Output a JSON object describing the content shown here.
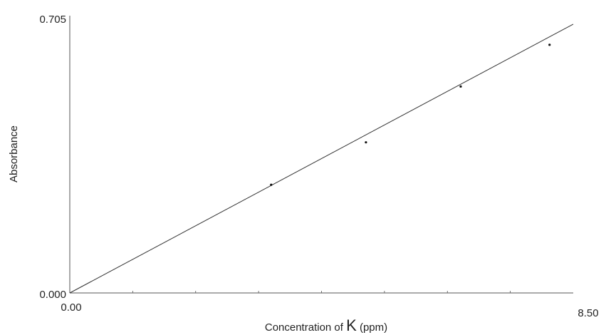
{
  "chart_data": {
    "type": "scatter",
    "title": "",
    "xlabel_parts": [
      "Concentration of ",
      "K",
      " (ppm)"
    ],
    "ylabel": "Absorbance",
    "xlim": [
      0.0,
      8.5
    ],
    "ylim": [
      0.0,
      0.705
    ],
    "x_tick_labels": {
      "min": "0.00",
      "max": "8.50"
    },
    "y_tick_labels": {
      "min": "0.000",
      "max": "0.705"
    },
    "grid": false,
    "legend": "none",
    "points": [
      {
        "x": 3.4,
        "y": 0.275
      },
      {
        "x": 5.0,
        "y": 0.383
      },
      {
        "x": 6.6,
        "y": 0.525
      },
      {
        "x": 8.1,
        "y": 0.631
      }
    ],
    "fit_line": {
      "slope": 0.0804,
      "intercept": 0.0,
      "x_end": 8.5
    },
    "colors": {
      "axis": "#555555",
      "line": "#333333",
      "point": "#111111"
    }
  }
}
